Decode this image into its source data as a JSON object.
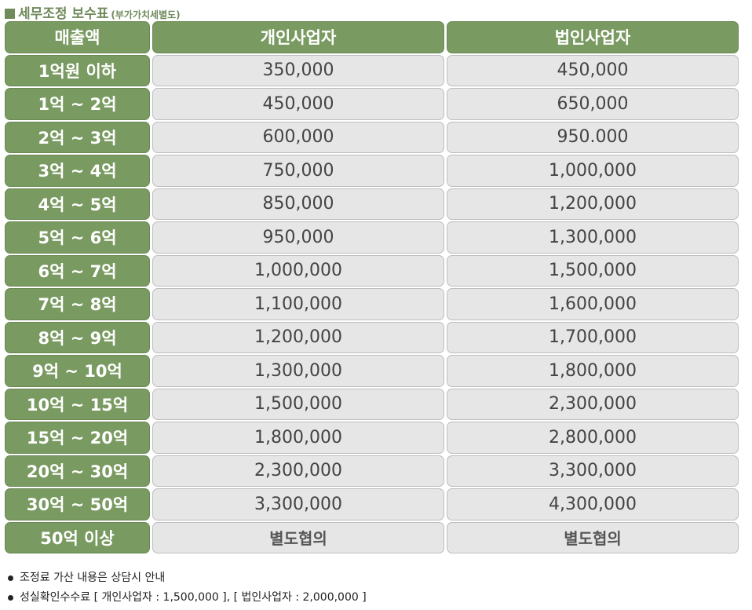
{
  "title": {
    "main": "세무조정 보수표",
    "sub": "(부가가치세별도)"
  },
  "table": {
    "headers": [
      "매출액",
      "개인사업자",
      "법인사업자"
    ],
    "rows": [
      {
        "range": "1억원 이하",
        "individual": "350,000",
        "corporate": "450,000"
      },
      {
        "range": "1억 ~ 2억",
        "individual": "450,000",
        "corporate": "650,000"
      },
      {
        "range": "2억 ~ 3억",
        "individual": "600,000",
        "corporate": "950.000"
      },
      {
        "range": "3억 ~ 4억",
        "individual": "750,000",
        "corporate": "1,000,000"
      },
      {
        "range": "4억 ~ 5억",
        "individual": "850,000",
        "corporate": "1,200,000"
      },
      {
        "range": "5억 ~ 6억",
        "individual": "950,000",
        "corporate": "1,300,000"
      },
      {
        "range": "6억 ~ 7억",
        "individual": "1,000,000",
        "corporate": "1,500,000"
      },
      {
        "range": "7억 ~ 8억",
        "individual": "1,100,000",
        "corporate": "1,600,000"
      },
      {
        "range": "8억 ~ 9억",
        "individual": "1,200,000",
        "corporate": "1,700,000"
      },
      {
        "range": "9억 ~ 10억",
        "individual": "1,300,000",
        "corporate": "1,800,000"
      },
      {
        "range": "10억 ~ 15억",
        "individual": "1,500,000",
        "corporate": "2,300,000"
      },
      {
        "range": "15억 ~ 20억",
        "individual": "1,800,000",
        "corporate": "2,800,000"
      },
      {
        "range": "20억 ~ 30억",
        "individual": "2,300,000",
        "corporate": "3,300,000"
      },
      {
        "range": "30억 ~ 50억",
        "individual": "3,300,000",
        "corporate": "4,300,000"
      },
      {
        "range": "50억 이상",
        "individual": "별도협의",
        "corporate": "별도협의"
      }
    ]
  },
  "notes": [
    "조정료 가산 내용은 상담시 안내",
    "성실확인수수료 [ 개인사업자 : 1,500,000 ], [ 법인사업자 : 2,000,000 ]"
  ]
}
